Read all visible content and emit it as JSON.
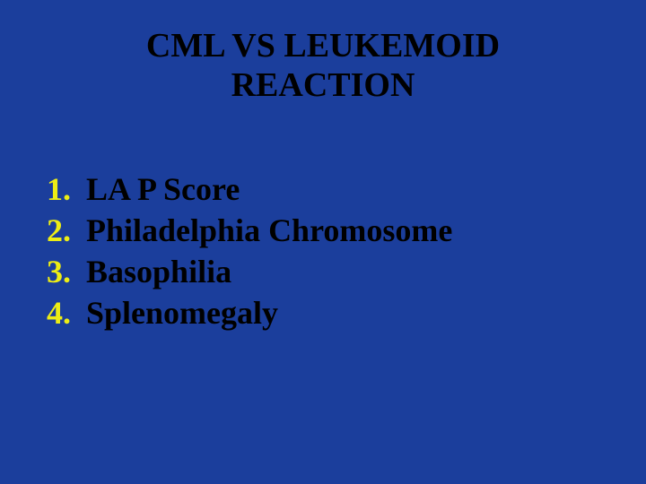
{
  "slide": {
    "background_color": "#1b3e9c",
    "title_color": "#000000",
    "number_color": "#eded15",
    "text_color": "#000000",
    "font_family": "Times New Roman",
    "title": {
      "line1": "CML VS LEUKEMOID",
      "line2": "REACTION",
      "fontsize": 38,
      "fontweight": "bold"
    },
    "list": {
      "fontsize": 36,
      "fontweight": "bold",
      "items": [
        {
          "number": "1.",
          "text": "LA P Score"
        },
        {
          "number": "2.",
          "text": "Philadelphia Chromosome"
        },
        {
          "number": "3.",
          "text": "Basophilia"
        },
        {
          "number": "4.",
          "text": "Splenomegaly"
        }
      ]
    }
  }
}
